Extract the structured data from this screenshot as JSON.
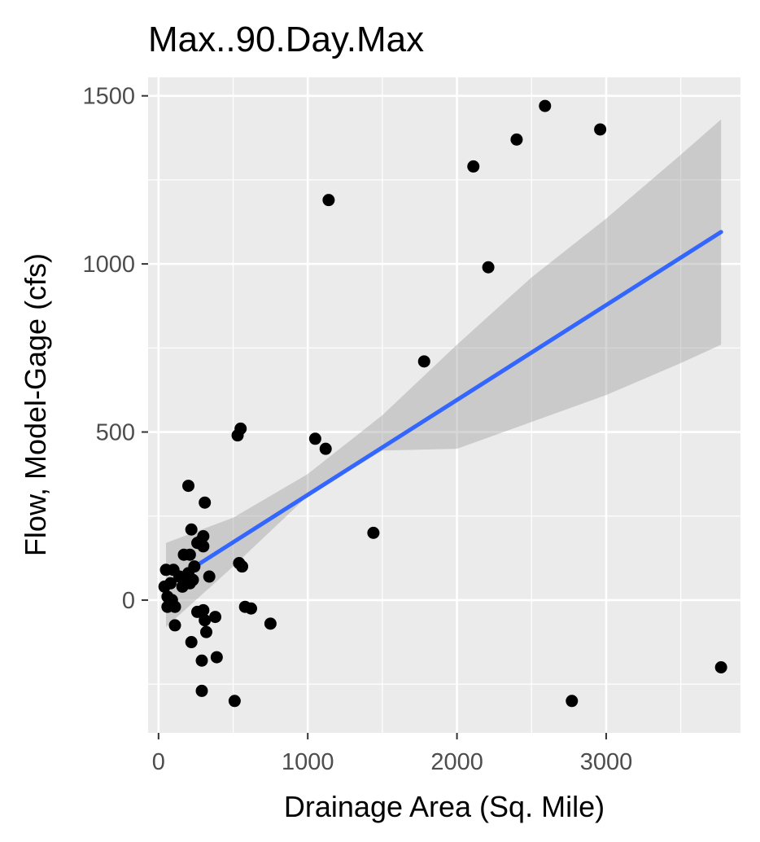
{
  "chart_data": {
    "type": "scatter",
    "title": "Max..90.Day.Max",
    "xlabel": "Drainage Area (Sq. Mile)",
    "ylabel": "Flow, Model-Gage (cfs)",
    "xlim": [
      -70,
      3900
    ],
    "ylim": [
      -395,
      1555
    ],
    "xticks": [
      0,
      1000,
      2000,
      3000
    ],
    "yticks": [
      0,
      500,
      1000,
      1500
    ],
    "xtick_labels": [
      "0",
      "1000",
      "2000",
      "3000"
    ],
    "ytick_labels": [
      "0",
      "500",
      "1000",
      "1500"
    ],
    "grid": true,
    "colors": {
      "panel_background": "#ebebeb",
      "grid": "#ffffff",
      "points": "#000000",
      "trend_line": "#3366ff",
      "confidence_band": "#999999"
    },
    "points": [
      {
        "x": 2590,
        "y": 1470
      },
      {
        "x": 2960,
        "y": 1400
      },
      {
        "x": 2400,
        "y": 1370
      },
      {
        "x": 2110,
        "y": 1290
      },
      {
        "x": 1140,
        "y": 1190
      },
      {
        "x": 2210,
        "y": 990
      },
      {
        "x": 1780,
        "y": 710
      },
      {
        "x": 550,
        "y": 510
      },
      {
        "x": 530,
        "y": 490
      },
      {
        "x": 1050,
        "y": 480
      },
      {
        "x": 1120,
        "y": 450
      },
      {
        "x": 200,
        "y": 340
      },
      {
        "x": 310,
        "y": 290
      },
      {
        "x": 220,
        "y": 210
      },
      {
        "x": 1440,
        "y": 200
      },
      {
        "x": 300,
        "y": 190
      },
      {
        "x": 280,
        "y": 175
      },
      {
        "x": 260,
        "y": 170
      },
      {
        "x": 300,
        "y": 160
      },
      {
        "x": 170,
        "y": 135
      },
      {
        "x": 210,
        "y": 135
      },
      {
        "x": 540,
        "y": 110
      },
      {
        "x": 560,
        "y": 100
      },
      {
        "x": 240,
        "y": 100
      },
      {
        "x": 50,
        "y": 90
      },
      {
        "x": 100,
        "y": 90
      },
      {
        "x": 200,
        "y": 80
      },
      {
        "x": 140,
        "y": 70
      },
      {
        "x": 340,
        "y": 70
      },
      {
        "x": 230,
        "y": 60
      },
      {
        "x": 180,
        "y": 55
      },
      {
        "x": 210,
        "y": 50
      },
      {
        "x": 80,
        "y": 50
      },
      {
        "x": 40,
        "y": 40
      },
      {
        "x": 160,
        "y": 40
      },
      {
        "x": 60,
        "y": 10
      },
      {
        "x": 90,
        "y": 0
      },
      {
        "x": 60,
        "y": -20
      },
      {
        "x": 110,
        "y": -20
      },
      {
        "x": 580,
        "y": -20
      },
      {
        "x": 620,
        "y": -25
      },
      {
        "x": 300,
        "y": -30
      },
      {
        "x": 260,
        "y": -35
      },
      {
        "x": 380,
        "y": -50
      },
      {
        "x": 310,
        "y": -60
      },
      {
        "x": 750,
        "y": -70
      },
      {
        "x": 110,
        "y": -75
      },
      {
        "x": 320,
        "y": -95
      },
      {
        "x": 220,
        "y": -125
      },
      {
        "x": 390,
        "y": -170
      },
      {
        "x": 290,
        "y": -180
      },
      {
        "x": 3770,
        "y": -200
      },
      {
        "x": 290,
        "y": -270
      },
      {
        "x": 510,
        "y": -300
      },
      {
        "x": 2770,
        "y": -300
      }
    ],
    "trend_line": {
      "method": "lm",
      "x": [
        50,
        3770
      ],
      "y": [
        45,
        1095
      ]
    },
    "confidence_band": {
      "x": [
        50,
        500,
        1000,
        1500,
        2000,
        2500,
        3000,
        3500,
        3770
      ],
      "upper": [
        170,
        245,
        375,
        550,
        760,
        960,
        1135,
        1325,
        1430
      ],
      "lower": [
        -80,
        100,
        310,
        445,
        450,
        530,
        610,
        705,
        760
      ]
    }
  }
}
